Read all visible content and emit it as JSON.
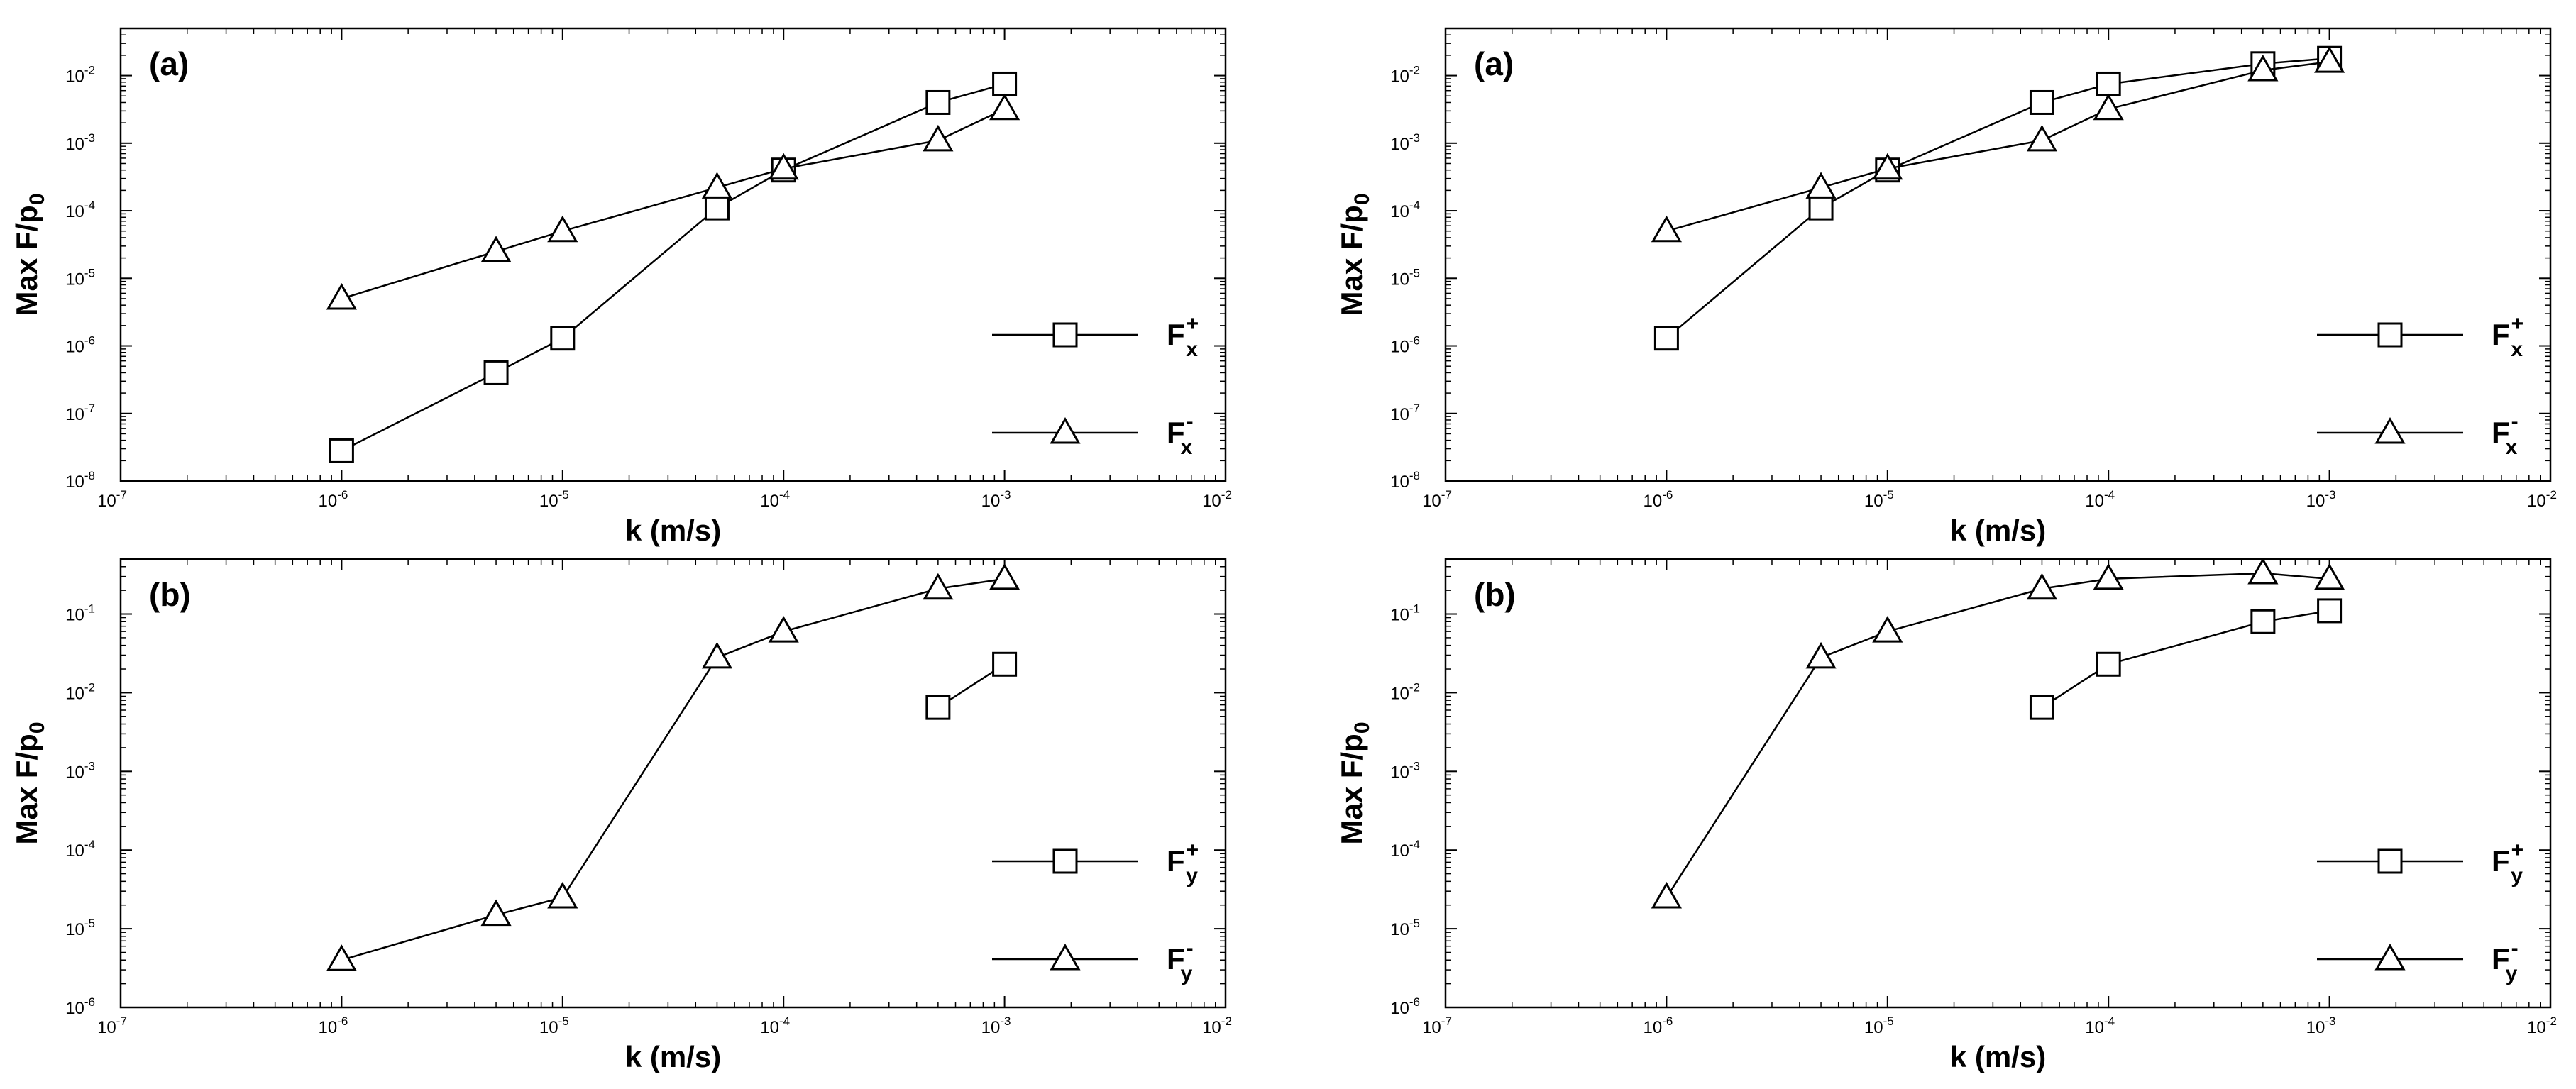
{
  "chart_data": [
    {
      "type": "line",
      "panel_label": "(a)",
      "xlabel": "k (m/s)",
      "ylabel_main": "Max F/p",
      "ylabel_sub": "0",
      "xscale": "log",
      "yscale": "log",
      "xlim": [
        1e-07,
        0.01
      ],
      "ylim": [
        1e-08,
        0.05
      ],
      "x_tick_exponents": [
        "-7",
        "-6",
        "-5",
        "-4",
        "-3",
        "-2"
      ],
      "y_tick_exponents": [
        "-8",
        "-7",
        "-6",
        "-5",
        "-4",
        "-3",
        "-2"
      ],
      "grid": false,
      "legend_position": "lower-right",
      "series": [
        {
          "name": "F",
          "sub": "x",
          "sup": "+",
          "marker": "square",
          "x": [
            1e-06,
            5e-06,
            1e-05,
            5e-05,
            0.0001,
            0.0005,
            0.001
          ],
          "y": [
            2.8e-08,
            4e-07,
            1.3e-06,
            0.00011,
            0.0004,
            0.004,
            0.0075
          ]
        },
        {
          "name": "F",
          "sub": "x",
          "sup": "-",
          "marker": "triangle",
          "x": [
            1e-06,
            5e-06,
            1e-05,
            5e-05,
            0.0001,
            0.0005,
            0.001
          ],
          "y": [
            5e-06,
            2.5e-05,
            5e-05,
            0.00022,
            0.00042,
            0.0011,
            0.0032
          ]
        }
      ]
    },
    {
      "type": "line",
      "panel_label": "(a)",
      "xlabel": "k (m/s)",
      "ylabel_main": "Max F/p",
      "ylabel_sub": "0",
      "xscale": "log",
      "yscale": "log",
      "xlim": [
        1e-07,
        0.01
      ],
      "ylim": [
        1e-08,
        0.05
      ],
      "x_tick_exponents": [
        "-7",
        "-6",
        "-5",
        "-4",
        "-3",
        "-2"
      ],
      "y_tick_exponents": [
        "-8",
        "-7",
        "-6",
        "-5",
        "-4",
        "-3",
        "-2"
      ],
      "grid": false,
      "legend_position": "lower-right",
      "series": [
        {
          "name": "F",
          "sub": "x",
          "sup": "+",
          "marker": "square",
          "x": [
            1e-06,
            5e-06,
            1e-05,
            5e-05,
            0.0001,
            0.0005,
            0.001
          ],
          "y": [
            1.3e-06,
            0.00011,
            0.0004,
            0.004,
            0.0075,
            0.015,
            0.018
          ]
        },
        {
          "name": "F",
          "sub": "x",
          "sup": "-",
          "marker": "triangle",
          "x": [
            1e-06,
            5e-06,
            1e-05,
            5e-05,
            0.0001,
            0.0005,
            0.001
          ],
          "y": [
            5e-05,
            0.00022,
            0.00042,
            0.0011,
            0.0032,
            0.012,
            0.016
          ]
        }
      ]
    },
    {
      "type": "line",
      "panel_label": "(b)",
      "xlabel": "k (m/s)",
      "ylabel_main": "Max F/p",
      "ylabel_sub": "0",
      "xscale": "log",
      "yscale": "log",
      "xlim": [
        1e-07,
        0.01
      ],
      "ylim": [
        1e-06,
        0.5
      ],
      "x_tick_exponents": [
        "-7",
        "-6",
        "-5",
        "-4",
        "-3",
        "-2"
      ],
      "y_tick_exponents": [
        "-6",
        "-5",
        "-4",
        "-3",
        "-2",
        "-1"
      ],
      "grid": false,
      "legend_position": "lower-right",
      "series": [
        {
          "name": "F",
          "sub": "y",
          "sup": "+",
          "marker": "square",
          "x": [
            0.0005,
            0.001
          ],
          "y": [
            0.0065,
            0.023
          ]
        },
        {
          "name": "F",
          "sub": "y",
          "sup": "-",
          "marker": "triangle",
          "x": [
            1e-06,
            5e-06,
            1e-05,
            5e-05,
            0.0001,
            0.0005,
            0.001
          ],
          "y": [
            4e-06,
            1.5e-05,
            2.5e-05,
            0.028,
            0.06,
            0.21,
            0.28
          ]
        }
      ]
    },
    {
      "type": "line",
      "panel_label": "(b)",
      "xlabel": "k (m/s)",
      "ylabel_main": "Max F/p",
      "ylabel_sub": "0",
      "xscale": "log",
      "yscale": "log",
      "xlim": [
        1e-07,
        0.01
      ],
      "ylim": [
        1e-06,
        0.5
      ],
      "x_tick_exponents": [
        "-7",
        "-6",
        "-5",
        "-4",
        "-3",
        "-2"
      ],
      "y_tick_exponents": [
        "-6",
        "-5",
        "-4",
        "-3",
        "-2",
        "-1"
      ],
      "grid": false,
      "legend_position": "lower-right",
      "series": [
        {
          "name": "F",
          "sub": "y",
          "sup": "+",
          "marker": "square",
          "x": [
            5e-05,
            0.0001,
            0.0005,
            0.001
          ],
          "y": [
            0.0065,
            0.023,
            0.08,
            0.11
          ]
        },
        {
          "name": "F",
          "sub": "y",
          "sup": "-",
          "marker": "triangle",
          "x": [
            1e-06,
            5e-06,
            1e-05,
            5e-05,
            0.0001,
            0.0005,
            0.001
          ],
          "y": [
            2.5e-05,
            0.028,
            0.06,
            0.21,
            0.28,
            0.33,
            0.28
          ]
        }
      ]
    }
  ],
  "tick_base": "10"
}
